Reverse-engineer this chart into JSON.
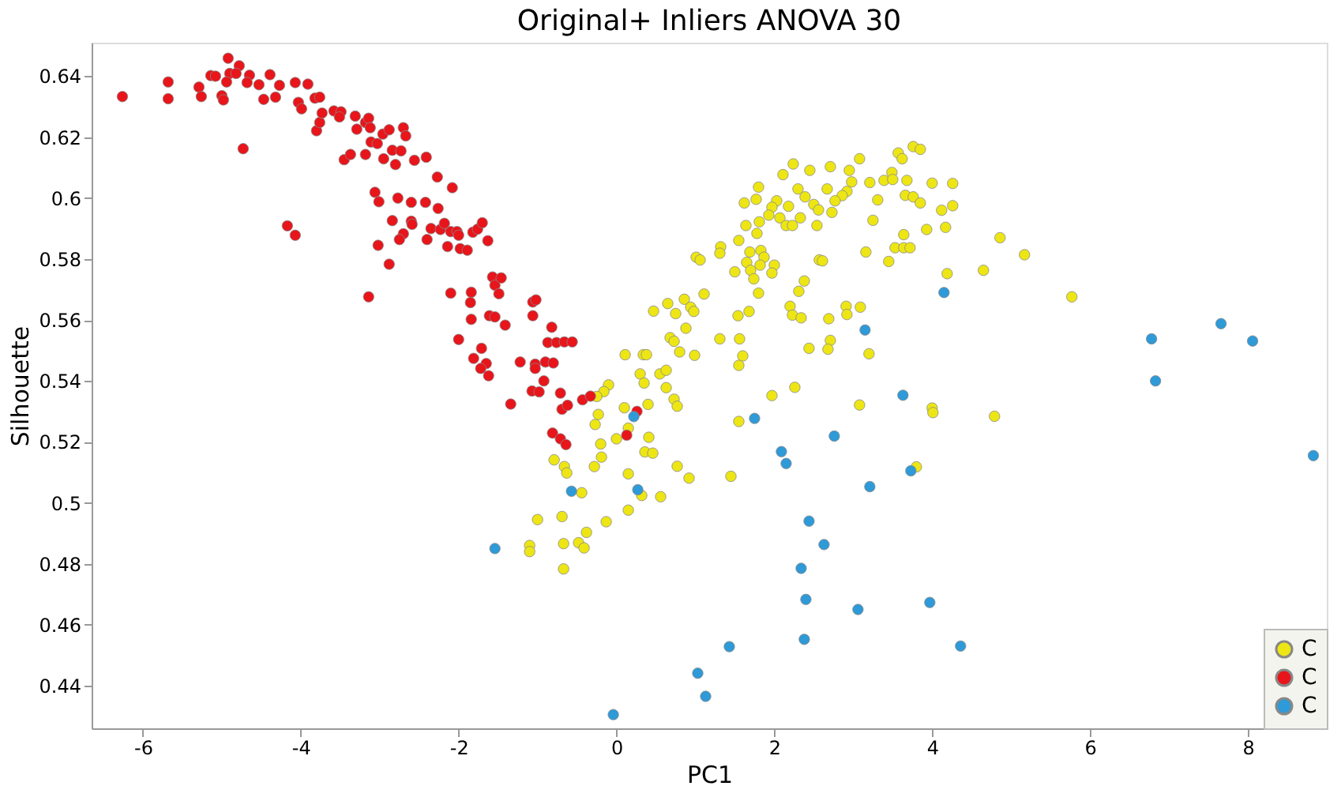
{
  "chart_data": {
    "type": "scatter",
    "title": "Original+ Inliers ANOVA 30",
    "xlabel": "PC1",
    "ylabel": "Silhouette",
    "xlim": [
      -6.65,
      9
    ],
    "ylim": [
      0.426,
      0.651
    ],
    "xticks": [
      -6,
      -4,
      -2,
      0,
      2,
      4,
      6,
      8
    ],
    "yticks": [
      0.44,
      0.46,
      0.48,
      0.5,
      0.52,
      0.54,
      0.56,
      0.58,
      0.6,
      0.62,
      0.64
    ],
    "grid": false,
    "legend": "bottom right",
    "marker": "circle",
    "series": [
      {
        "name": "C",
        "color": "#ede614",
        "x": [
          3.76,
          3.85,
          3.57,
          3.62,
          3.08,
          2.71,
          2.45,
          2.24,
          2.11,
          1.8,
          2.3,
          2.39,
          2.67,
          2.95,
          2.98,
          3.21,
          3.39,
          3.49,
          3.5,
          3.68,
          4.0,
          4.26,
          3.66,
          3.76,
          3.85,
          4.12,
          4.26,
          3.31,
          2.92,
          2.86,
          2.77,
          2.73,
          2.5,
          2.56,
          2.54,
          2.33,
          2.18,
          2.03,
          1.97,
          1.93,
          2.07,
          2.15,
          2.23,
          1.77,
          1.62,
          1.81,
          1.64,
          1.55,
          1.78,
          1.32,
          1.31,
          1.01,
          1.06,
          1.69,
          1.83,
          1.87,
          1.65,
          1.82,
          1.7,
          2.0,
          1.97,
          1.5,
          1.74,
          1.8,
          2.57,
          2.61,
          2.38,
          2.31,
          3.16,
          3.25,
          3.45,
          3.64,
          3.53,
          3.64,
          3.72,
          3.93,
          4.17,
          4.19,
          4.65,
          4.86,
          5.17,
          1.11,
          0.86,
          0.65,
          0.47,
          0.75,
          0.94,
          0.98,
          0.88,
          0.68,
          0.73,
          0.8,
          0.99,
          1.31,
          1.54,
          1.68,
          1.56,
          1.6,
          1.55,
          2.2,
          2.23,
          2.34,
          2.69,
          2.91,
          2.92,
          3.09,
          2.44,
          2.71,
          2.68,
          3.2,
          0.11,
          0.34,
          0.38,
          0.3,
          0.35,
          0.55,
          0.63,
          0.63,
          0.73,
          0.77,
          -0.1,
          -0.16,
          -0.25,
          0.0,
          0.41,
          0.36,
          0.46,
          1.97,
          2.26,
          3.08,
          4.0,
          4.01,
          4.79,
          1.55,
          0.4,
          0.15,
          0.77,
          0.92,
          0.56,
          1.45,
          3.8,
          -0.79,
          -0.66,
          -0.63,
          -0.28,
          -0.19,
          -0.2,
          -0.27,
          -0.23,
          0.1,
          0.15,
          0.15,
          -0.44,
          -1.0,
          -0.69,
          -1.1,
          -1.1,
          -0.67,
          -0.48,
          -0.41,
          -0.38,
          -0.13,
          -0.67,
          0.32,
          5.77
        ],
        "values": [
          0.6169,
          0.616,
          0.6148,
          0.6129,
          0.6129,
          0.6103,
          0.6091,
          0.6112,
          0.6077,
          0.6036,
          0.603,
          0.6004,
          0.603,
          0.6091,
          0.6053,
          0.6051,
          0.6058,
          0.6084,
          0.6061,
          0.6058,
          0.6049,
          0.6048,
          0.6009,
          0.6004,
          0.5984,
          0.596,
          0.5975,
          0.5994,
          0.6022,
          0.6008,
          0.5991,
          0.5953,
          0.5979,
          0.5961,
          0.591,
          0.5935,
          0.5973,
          0.5991,
          0.597,
          0.5944,
          0.5935,
          0.591,
          0.591,
          0.5996,
          0.5984,
          0.5922,
          0.591,
          0.5861,
          0.5884,
          0.584,
          0.5819,
          0.5806,
          0.5797,
          0.5823,
          0.5828,
          0.5806,
          0.5789,
          0.578,
          0.5763,
          0.578,
          0.5754,
          0.5758,
          0.5735,
          0.5688,
          0.5797,
          0.5794,
          0.5728,
          0.5694,
          0.5823,
          0.5927,
          0.5792,
          0.588,
          0.5837,
          0.5837,
          0.5837,
          0.5897,
          0.5904,
          0.5752,
          0.5763,
          0.587,
          0.5814,
          0.5685,
          0.5668,
          0.5654,
          0.5629,
          0.5621,
          0.5642,
          0.5628,
          0.5573,
          0.5542,
          0.553,
          0.5495,
          0.5484,
          0.5538,
          0.5614,
          0.5628,
          0.5538,
          0.5482,
          0.5451,
          0.5645,
          0.5616,
          0.5607,
          0.5604,
          0.5645,
          0.5618,
          0.5642,
          0.5507,
          0.5533,
          0.5504,
          0.5489,
          0.5486,
          0.5486,
          0.5486,
          0.5423,
          0.5393,
          0.5423,
          0.5435,
          0.5378,
          0.534,
          0.5317,
          0.5387,
          0.5365,
          0.5349,
          0.521,
          0.5215,
          0.5167,
          0.5163,
          0.5352,
          0.5379,
          0.5321,
          0.5311,
          0.5296,
          0.5284,
          0.5267,
          0.5323,
          0.5245,
          0.512,
          0.5081,
          0.502,
          0.5087,
          0.5118,
          0.5141,
          0.5119,
          0.5098,
          0.5119,
          0.515,
          0.5193,
          0.5257,
          0.529,
          0.5312,
          0.5095,
          0.4976,
          0.5033,
          0.4945,
          0.4955,
          0.486,
          0.484,
          0.4866,
          0.4869,
          0.4852,
          0.4903,
          0.4938,
          0.4783,
          0.5024,
          0.5676
        ]
      },
      {
        "name": "C",
        "color": "#e8151b",
        "x": [
          -6.26,
          -5.68,
          -5.68,
          -5.29,
          -5.26,
          -5.14,
          -5.08,
          -5.0,
          -4.98,
          -4.92,
          -4.9,
          -4.94,
          -4.78,
          -4.82,
          -4.65,
          -4.68,
          -4.73,
          -4.53,
          -4.47,
          -4.39,
          -4.32,
          -4.27,
          -4.07,
          -4.03,
          -3.91,
          -3.99,
          -3.82,
          -3.76,
          -3.8,
          -3.76,
          -3.73,
          -3.58,
          -3.49,
          -3.51,
          -3.31,
          -3.29,
          -3.18,
          -3.14,
          -3.12,
          -3.11,
          -3.03,
          -2.96,
          -2.88,
          -2.7,
          -2.67,
          -3.45,
          -3.37,
          -3.18,
          -2.95,
          -2.84,
          -2.73,
          -2.8,
          -2.56,
          -2.41,
          -3.06,
          -3.01,
          -2.77,
          -2.6,
          -2.42,
          -2.26,
          -2.08,
          -2.27,
          -4.17,
          -4.07,
          -3.02,
          -2.88,
          -2.84,
          -2.7,
          -2.75,
          -2.6,
          -2.59,
          -2.4,
          -2.35,
          -2.23,
          -2.18,
          -2.1,
          -2.02,
          -2.0,
          -2.14,
          -1.98,
          -1.89,
          -1.82,
          -1.76,
          -1.7,
          -1.63,
          -3.14,
          -2.1,
          -1.84,
          -1.85,
          -1.84,
          -2.0,
          -1.81,
          -1.71,
          -1.65,
          -1.62,
          -1.72,
          -1.57,
          -1.54,
          -1.46,
          -1.49,
          -1.61,
          -1.54,
          -1.41,
          -1.34,
          -1.22,
          -1.06,
          -1.02,
          -1.06,
          -1.03,
          -1.03,
          -0.9,
          -0.8,
          -0.82,
          -0.87,
          -0.76,
          -0.66,
          -0.56,
          -1.07,
          -0.98,
          -0.92,
          -0.71,
          -0.69,
          -0.62,
          -0.43,
          -0.33,
          -0.81,
          -0.71,
          -0.64,
          0.13,
          0.26
        ],
        "values": [
          0.6333,
          0.6381,
          0.6326,
          0.6364,
          0.6333,
          0.6402,
          0.64,
          0.6336,
          0.6322,
          0.6459,
          0.6409,
          0.6381,
          0.6434,
          0.6409,
          0.6403,
          0.6379,
          0.6162,
          0.6372,
          0.6324,
          0.6405,
          0.6331,
          0.637,
          0.6379,
          0.6314,
          0.6374,
          0.6293,
          0.6328,
          0.6331,
          0.6221,
          0.6248,
          0.6279,
          0.6286,
          0.6283,
          0.6266,
          0.6269,
          0.6226,
          0.6248,
          0.6262,
          0.6231,
          0.6184,
          0.6179,
          0.621,
          0.6224,
          0.6231,
          0.6204,
          0.6126,
          0.6143,
          0.6143,
          0.6129,
          0.6157,
          0.6155,
          0.611,
          0.6124,
          0.6134,
          0.6019,
          0.5988,
          0.6,
          0.5986,
          0.5986,
          0.5966,
          0.6034,
          0.6069,
          0.5909,
          0.5878,
          0.5845,
          0.5783,
          0.5926,
          0.5883,
          0.5864,
          0.5924,
          0.5914,
          0.5864,
          0.59,
          0.5897,
          0.5917,
          0.589,
          0.589,
          0.5878,
          0.5841,
          0.5834,
          0.5829,
          0.5888,
          0.5898,
          0.5919,
          0.586,
          0.5676,
          0.5688,
          0.5691,
          0.5657,
          0.5602,
          0.5536,
          0.5474,
          0.5507,
          0.5457,
          0.5417,
          0.5441,
          0.5741,
          0.5714,
          0.5738,
          0.5686,
          0.5614,
          0.561,
          0.5583,
          0.5324,
          0.5462,
          0.5659,
          0.5666,
          0.5614,
          0.5455,
          0.5441,
          0.5462,
          0.5459,
          0.5576,
          0.5526,
          0.5526,
          0.5528,
          0.5528,
          0.5367,
          0.5364,
          0.54,
          0.536,
          0.5307,
          0.532,
          0.5338,
          0.535,
          0.5229,
          0.521,
          0.5191,
          0.5222,
          0.53
        ]
      },
      {
        "name": "C",
        "color": "#2e9ad8",
        "x": [
          -1.54,
          -0.57,
          0.27,
          0.22,
          -0.04,
          1.75,
          2.76,
          2.09,
          2.15,
          3.73,
          3.21,
          2.44,
          2.63,
          2.34,
          2.4,
          3.06,
          3.97,
          2.38,
          1.43,
          4.36,
          1.03,
          1.13,
          4.15,
          6.78,
          6.83,
          7.66,
          8.06,
          8.83,
          3.63,
          3.15
        ],
        "values": [
          0.485,
          0.5038,
          0.5043,
          0.5283,
          0.4305,
          0.5277,
          0.5219,
          0.5168,
          0.5129,
          0.5105,
          0.5053,
          0.494,
          0.4863,
          0.4785,
          0.4683,
          0.465,
          0.4673,
          0.4552,
          0.4528,
          0.453,
          0.4441,
          0.4365,
          0.569,
          0.5538,
          0.54,
          0.5588,
          0.5531,
          0.5155,
          0.5353,
          0.5567
        ]
      }
    ]
  }
}
